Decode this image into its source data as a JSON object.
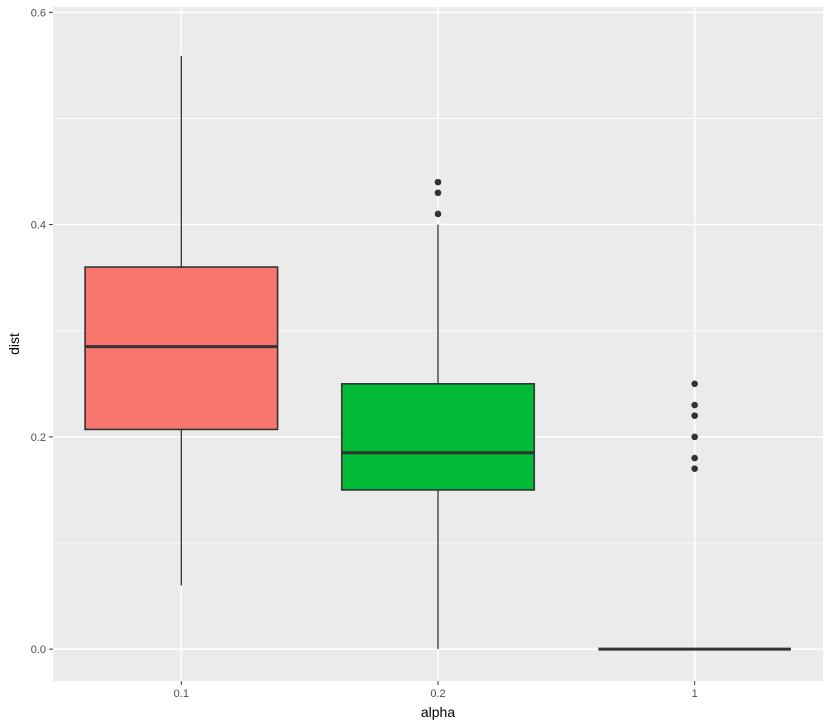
{
  "chart_data": {
    "type": "boxplot",
    "xlabel": "alpha",
    "ylabel": "dist",
    "categories": [
      "0.1",
      "0.2",
      "1"
    ],
    "ylim": [
      -0.03,
      0.605
    ],
    "yticks": [
      0.0,
      0.2,
      0.4,
      0.6
    ],
    "ytick_labels": [
      "0.0",
      "0.2",
      "0.4",
      "0.6"
    ],
    "grid": true,
    "legend": "none",
    "panel_background": "#EBEBEB",
    "grid_color": "#FFFFFF",
    "box_outline_color": "#333333",
    "boxes": [
      {
        "category": "0.1",
        "fill": "#F8766D",
        "whisker_low": 0.06,
        "q1": 0.207,
        "median": 0.285,
        "q3": 0.36,
        "whisker_high": 0.559,
        "outliers": []
      },
      {
        "category": "0.2",
        "fill": "#00BA38",
        "whisker_low": 0.0,
        "q1": 0.15,
        "median": 0.185,
        "q3": 0.25,
        "whisker_high": 0.4,
        "outliers": [
          0.41,
          0.43,
          0.44
        ]
      },
      {
        "category": "1",
        "fill": "#619CFF",
        "whisker_low": 0.0,
        "q1": 0.0,
        "median": 0.0,
        "q3": 0.0,
        "whisker_high": 0.0,
        "outliers": [
          0.17,
          0.18,
          0.2,
          0.22,
          0.23,
          0.25
        ]
      }
    ]
  }
}
